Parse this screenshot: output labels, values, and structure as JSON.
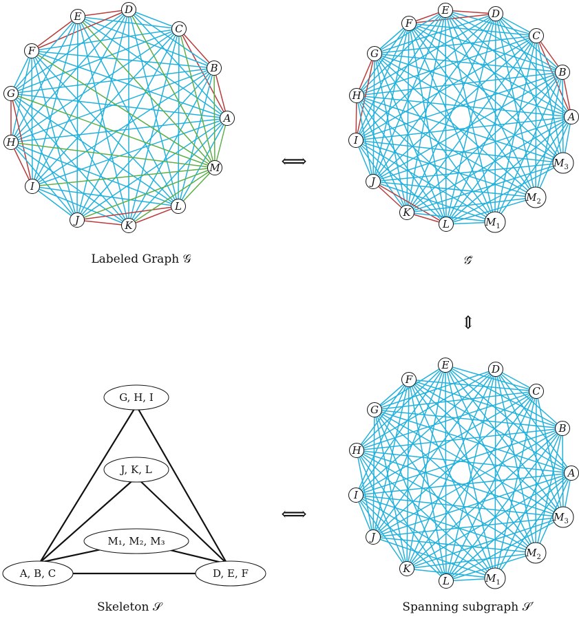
{
  "colors": {
    "blue": "#22b1dc",
    "red": "#b83b3b",
    "green": "#5cae46"
  },
  "graph_g": {
    "caption": "Labeled Graph 𝒢",
    "nodes": [
      "A",
      "B",
      "C",
      "D",
      "E",
      "F",
      "G",
      "H",
      "I",
      "J",
      "K",
      "L",
      "M"
    ]
  },
  "graph_gt": {
    "caption": "𝒢̃",
    "nodes": [
      {
        "l": "A",
        "s": ""
      },
      {
        "l": "B",
        "s": ""
      },
      {
        "l": "C",
        "s": ""
      },
      {
        "l": "D",
        "s": ""
      },
      {
        "l": "E",
        "s": ""
      },
      {
        "l": "F",
        "s": ""
      },
      {
        "l": "G",
        "s": ""
      },
      {
        "l": "H",
        "s": ""
      },
      {
        "l": "I",
        "s": ""
      },
      {
        "l": "J",
        "s": ""
      },
      {
        "l": "K",
        "s": ""
      },
      {
        "l": "L",
        "s": ""
      },
      {
        "l": "M",
        "s": "1"
      },
      {
        "l": "M",
        "s": "2"
      },
      {
        "l": "M",
        "s": "3"
      }
    ]
  },
  "graph_sp": {
    "caption": "Spanning subgraph 𝒮′"
  },
  "skeleton": {
    "caption": "Skeleton 𝒮",
    "nodes": {
      "ghi": "G, H, I",
      "jkl": "J, K, L",
      "m": "M₁, M₂, M₃",
      "abc": "A, B, C",
      "def": "D, E, F"
    }
  },
  "arrows": {
    "iff_top": "⟺",
    "updown": "⇕",
    "iff_bottom": "⟺"
  }
}
